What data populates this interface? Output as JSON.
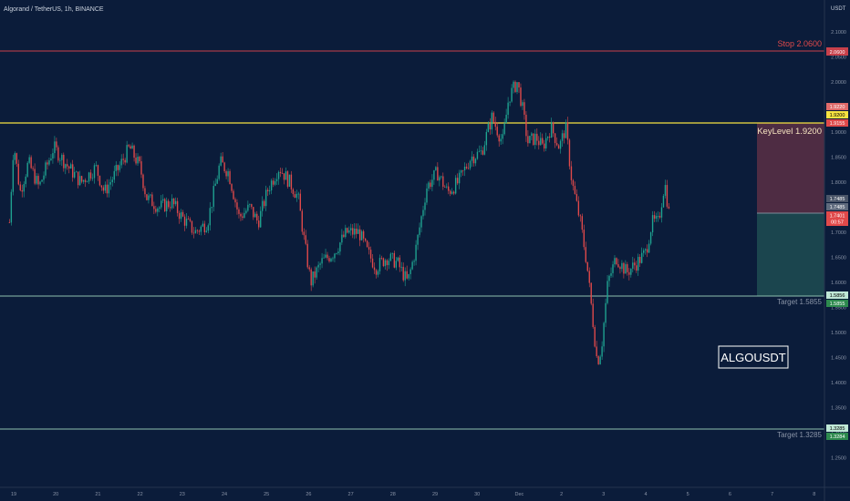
{
  "header": {
    "symbol_label": "Algorand / TetherUS, 1h, BINANCE",
    "currency": "USDT"
  },
  "watermark": "ALGOUSDT",
  "colors": {
    "background": "#0b1c3a",
    "up": "#1fa391",
    "down": "#e0494a",
    "stop_line": "#c8404b",
    "key_line": "#f7e341",
    "target_line": "#8fbfae",
    "risk_zone": "#5a2f45",
    "reward_zone": "#1f4c52",
    "axis_text": "#8a94a7"
  },
  "annotations": {
    "stop": {
      "label": "Stop 2.0600",
      "badge": "2.0600"
    },
    "key_level": {
      "label": "KeyLevel 1.9200",
      "badges": [
        "1.9220",
        "1.9200",
        "1.9155"
      ]
    },
    "entry": {
      "badges": [
        "1.7485",
        "1.7485",
        "1.7401",
        "00:57"
      ]
    },
    "target1": {
      "label": "Target 1.5855",
      "badges": [
        "1.5856",
        "1.5855"
      ]
    },
    "target2": {
      "label": "Target 1.3285",
      "badges": [
        "1.3285",
        "1.3284"
      ]
    }
  },
  "chart_data": {
    "type": "candlestick",
    "title": "Algorand / TetherUS, 1h, BINANCE",
    "ylim": [
      1.2,
      2.155
    ],
    "y_ticks": [
      "2.1000",
      "2.0500",
      "2.0000",
      "1.9500",
      "1.9000",
      "1.8500",
      "1.8000",
      "1.7500",
      "1.7000",
      "1.6500",
      "1.6000",
      "1.5500",
      "1.5000",
      "1.4500",
      "1.4000",
      "1.3500",
      "1.3000",
      "1.2500"
    ],
    "x_ticks": [
      "19",
      "20",
      "21",
      "22",
      "23",
      "24",
      "25",
      "26",
      "27",
      "28",
      "29",
      "30",
      "Dec",
      "2",
      "3",
      "4",
      "5",
      "6",
      "7",
      "8"
    ],
    "levels": [
      {
        "name": "Stop",
        "value": 2.06
      },
      {
        "name": "KeyLevel",
        "value": 1.92
      },
      {
        "name": "Target",
        "value": 1.5855
      },
      {
        "name": "Target",
        "value": 1.3285
      }
    ],
    "current_price": 1.7401,
    "price_path": [
      [
        18.9,
        1.72
      ],
      [
        19.0,
        1.88
      ],
      [
        19.15,
        1.78
      ],
      [
        19.35,
        1.84
      ],
      [
        19.6,
        1.79
      ],
      [
        19.95,
        1.87
      ],
      [
        20.3,
        1.83
      ],
      [
        20.6,
        1.8
      ],
      [
        20.95,
        1.83
      ],
      [
        21.15,
        1.78
      ],
      [
        21.5,
        1.83
      ],
      [
        21.75,
        1.87
      ],
      [
        22.0,
        1.83
      ],
      [
        22.15,
        1.77
      ],
      [
        22.45,
        1.75
      ],
      [
        22.75,
        1.76
      ],
      [
        23.0,
        1.73
      ],
      [
        23.3,
        1.7
      ],
      [
        23.6,
        1.72
      ],
      [
        23.9,
        1.84
      ],
      [
        24.1,
        1.82
      ],
      [
        24.35,
        1.73
      ],
      [
        24.6,
        1.75
      ],
      [
        24.8,
        1.72
      ],
      [
        25.05,
        1.79
      ],
      [
        25.3,
        1.83
      ],
      [
        25.55,
        1.8
      ],
      [
        25.75,
        1.77
      ],
      [
        25.9,
        1.68
      ],
      [
        26.05,
        1.6
      ],
      [
        26.3,
        1.64
      ],
      [
        26.6,
        1.66
      ],
      [
        26.9,
        1.7
      ],
      [
        27.2,
        1.7
      ],
      [
        27.4,
        1.66
      ],
      [
        27.6,
        1.63
      ],
      [
        27.85,
        1.65
      ],
      [
        28.1,
        1.64
      ],
      [
        28.35,
        1.6
      ],
      [
        28.55,
        1.67
      ],
      [
        28.8,
        1.79
      ],
      [
        29.05,
        1.82
      ],
      [
        29.3,
        1.78
      ],
      [
        29.55,
        1.8
      ],
      [
        29.85,
        1.85
      ],
      [
        30.1,
        1.86
      ],
      [
        30.35,
        1.93
      ],
      [
        30.6,
        1.88
      ],
      [
        30.75,
        1.97
      ],
      [
        30.95,
        2.0
      ],
      [
        31.05,
        1.96
      ],
      [
        31.2,
        1.88
      ],
      [
        31.4,
        1.89
      ],
      [
        31.55,
        1.87
      ],
      [
        31.75,
        1.91
      ],
      [
        31.95,
        1.87
      ],
      [
        32.1,
        1.91
      ],
      [
        32.25,
        1.8
      ],
      [
        32.45,
        1.72
      ],
      [
        32.6,
        1.64
      ],
      [
        32.75,
        1.52
      ],
      [
        32.85,
        1.44
      ],
      [
        32.95,
        1.47
      ],
      [
        33.1,
        1.6
      ],
      [
        33.3,
        1.65
      ],
      [
        33.55,
        1.62
      ],
      [
        33.8,
        1.64
      ],
      [
        34.0,
        1.66
      ],
      [
        34.15,
        1.72
      ],
      [
        34.3,
        1.72
      ],
      [
        34.45,
        1.8
      ],
      [
        34.55,
        1.74
      ]
    ],
    "bar_count": 366
  }
}
